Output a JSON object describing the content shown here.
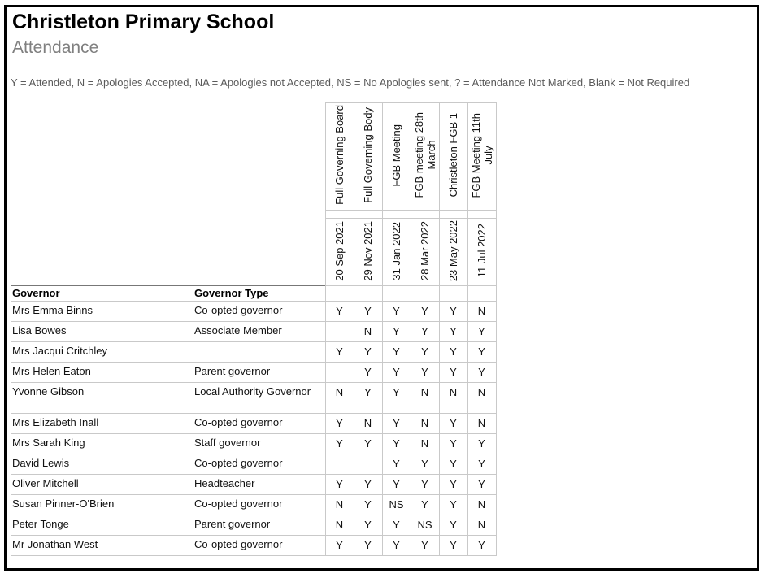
{
  "header": {
    "title": "Christleton Primary School",
    "subtitle": "Attendance",
    "legend": "Y = Attended, N = Apologies Accepted, NA = Apologies not Accepted, NS = No Apologies sent, ? = Attendance Not Marked, Blank = Not Required"
  },
  "table": {
    "name_col_header": "Governor",
    "type_col_header": "Governor Type",
    "meetings": [
      {
        "name": "Full Governing Board",
        "date": "20 Sep 2021"
      },
      {
        "name": "Full Governing Body",
        "date": "29 Nov 2021"
      },
      {
        "name": "FGB Meeting",
        "date": "31 Jan 2022"
      },
      {
        "name": "FGB meeting 28th\nMarch",
        "date": "28 Mar 2022"
      },
      {
        "name": "Christleton FGB 1",
        "date": "23 May 2022"
      },
      {
        "name": "FGB Meeting 11th\nJuly",
        "date": "11 Jul 2022"
      }
    ],
    "rows": [
      {
        "governor": "Mrs Emma Binns",
        "type": "Co-opted governor",
        "attendance": [
          "Y",
          "Y",
          "Y",
          "Y",
          "Y",
          "N"
        ]
      },
      {
        "governor": "Lisa Bowes",
        "type": "Associate Member",
        "attendance": [
          "",
          "N",
          "Y",
          "Y",
          "Y",
          "Y"
        ]
      },
      {
        "governor": "Mrs Jacqui Critchley",
        "type": "",
        "attendance": [
          "Y",
          "Y",
          "Y",
          "Y",
          "Y",
          "Y"
        ]
      },
      {
        "governor": "Mrs Helen Eaton",
        "type": "Parent governor",
        "attendance": [
          "",
          "Y",
          "Y",
          "Y",
          "Y",
          "Y"
        ]
      },
      {
        "governor": "Yvonne Gibson",
        "type": "Local Authority Governor",
        "attendance": [
          "N",
          "Y",
          "Y",
          "N",
          "N",
          "N"
        ]
      },
      {
        "governor": "Mrs Elizabeth Inall",
        "type": "Co-opted governor",
        "attendance": [
          "Y",
          "N",
          "Y",
          "N",
          "Y",
          "N"
        ]
      },
      {
        "governor": "Mrs Sarah King",
        "type": "Staff governor",
        "attendance": [
          "Y",
          "Y",
          "Y",
          "N",
          "Y",
          "Y"
        ]
      },
      {
        "governor": "David Lewis",
        "type": "Co-opted governor",
        "attendance": [
          "",
          "",
          "Y",
          "Y",
          "Y",
          "Y"
        ]
      },
      {
        "governor": "Oliver Mitchell",
        "type": "Headteacher",
        "attendance": [
          "Y",
          "Y",
          "Y",
          "Y",
          "Y",
          "Y"
        ]
      },
      {
        "governor": "Susan Pinner-O'Brien",
        "type": "Co-opted governor",
        "attendance": [
          "N",
          "Y",
          "NS",
          "Y",
          "Y",
          "N"
        ]
      },
      {
        "governor": "Peter Tonge",
        "type": "Parent governor",
        "attendance": [
          "N",
          "Y",
          "Y",
          "NS",
          "Y",
          "N"
        ]
      },
      {
        "governor": "Mr Jonathan West",
        "type": "Co-opted governor",
        "attendance": [
          "Y",
          "Y",
          "Y",
          "Y",
          "Y",
          "Y"
        ]
      }
    ]
  },
  "colors": {
    "grid": "#c9c9c9",
    "rule": "#777777",
    "subtitle": "#808080",
    "legend": "#5a5a5a",
    "frame": "#000000"
  }
}
